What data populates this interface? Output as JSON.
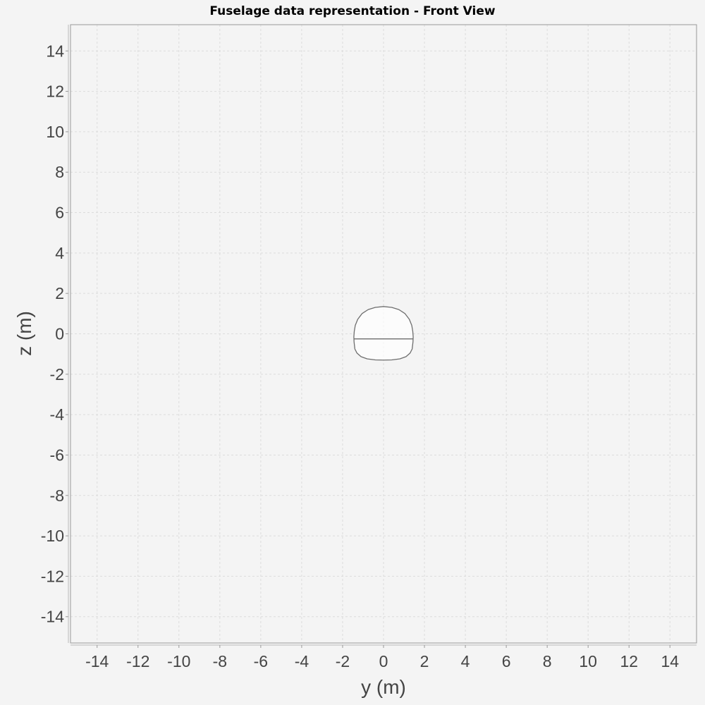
{
  "chart_data": {
    "type": "line",
    "title": "Fuselage data representation - Front View",
    "xlabel": "y (m)",
    "ylabel": "z (m)",
    "xlim": [
      -15.3,
      15.3
    ],
    "ylim": [
      -15.3,
      15.3
    ],
    "x_ticks": [
      -14,
      -12,
      -10,
      -8,
      -6,
      -4,
      -2,
      0,
      2,
      4,
      6,
      8,
      10,
      12,
      14
    ],
    "y_ticks": [
      -14,
      -12,
      -10,
      -8,
      -6,
      -4,
      -2,
      0,
      2,
      4,
      6,
      8,
      10,
      12,
      14
    ],
    "grid": true,
    "colors": {
      "background": "#f4f4f4",
      "plot_background": "#f4f4f4",
      "grid": "#dcdcdc",
      "axis": "#999999",
      "outline": "#6e6e6e",
      "fill": "#ffffff"
    },
    "series": [
      {
        "x": [
          0.0,
          0.4,
          0.75,
          1.05,
          1.26,
          1.38,
          1.43,
          1.45,
          1.44,
          1.4,
          1.3,
          1.1,
          0.8,
          0.4,
          0.0,
          -0.4,
          -0.8,
          -1.1,
          -1.3,
          -1.4,
          -1.44,
          -1.45,
          -1.43,
          -1.38,
          -1.26,
          -1.05,
          -0.75,
          -0.4,
          0.0
        ],
        "y": [
          1.35,
          1.31,
          1.2,
          1.0,
          0.72,
          0.42,
          0.12,
          -0.15,
          -0.4,
          -0.75,
          -0.95,
          -1.13,
          -1.24,
          -1.29,
          -1.3,
          -1.29,
          -1.24,
          -1.13,
          -0.95,
          -0.75,
          -0.4,
          -0.15,
          0.12,
          0.42,
          0.72,
          1.0,
          1.2,
          1.31,
          1.35
        ]
      },
      {
        "x": [
          -1.45,
          1.45
        ],
        "y": [
          -0.25,
          -0.25
        ]
      }
    ]
  }
}
